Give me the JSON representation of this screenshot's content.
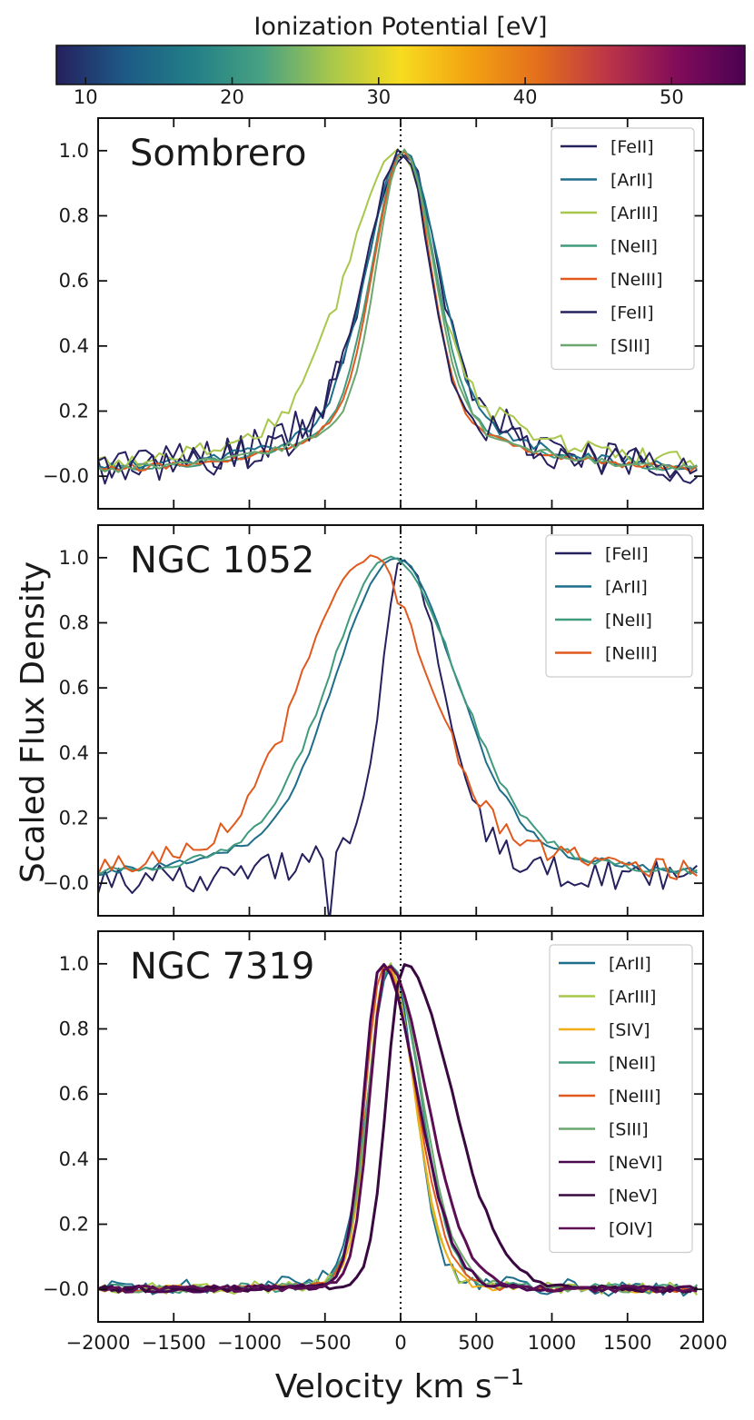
{
  "colorbar": {
    "label": "Ionization Potential [eV]",
    "min": 8,
    "max": 55,
    "ticks": [
      10,
      20,
      30,
      40,
      50
    ],
    "colormap": [
      "#25205e",
      "#1d5a85",
      "#227f87",
      "#49a281",
      "#a9c74b",
      "#f7dc1f",
      "#f3a211",
      "#e36f1c",
      "#bc3547",
      "#820c5a",
      "#4b0252"
    ]
  },
  "chart_data": [
    {
      "type": "line",
      "title": "Sombrero",
      "xlabel": "Velocity km s$^{-1}$",
      "ylabel": "Scaled Flux Density",
      "xlim": [
        -2000,
        2000
      ],
      "ylim": [
        -0.1,
        1.1
      ],
      "yticks": [
        "−0.0",
        "0.2",
        "0.4",
        "0.6",
        "0.8",
        "1.0"
      ],
      "x_tick_labels_shown": false,
      "series": [
        {
          "name": "[FeII]",
          "color": "#25205e",
          "center": 30,
          "width_left": 240,
          "width_right": 190,
          "wing": 0.28,
          "wing_width": 700,
          "noise": 0.06
        },
        {
          "name": "[ArII]",
          "color": "#1d6e8a",
          "center": 20,
          "width_left": 230,
          "width_right": 220,
          "wing": 0.22,
          "wing_width": 750,
          "noise": 0.015
        },
        {
          "name": "[ArIII]",
          "color": "#a9c74b",
          "center": -10,
          "width_left": 320,
          "width_right": 210,
          "wing": 0.3,
          "wing_width": 800,
          "noise": 0.03
        },
        {
          "name": "[NeII]",
          "color": "#3f9a7e",
          "center": 20,
          "width_left": 200,
          "width_right": 200,
          "wing": 0.2,
          "wing_width": 700,
          "noise": 0.01
        },
        {
          "name": "[NeIII]",
          "color": "#e1591c",
          "center": 20,
          "width_left": 190,
          "width_right": 170,
          "wing": 0.22,
          "wing_width": 650,
          "noise": 0.01
        },
        {
          "name": "[FeII]",
          "color": "#25205e",
          "center": 10,
          "width_left": 230,
          "width_right": 170,
          "wing": 0.25,
          "wing_width": 650,
          "noise": 0.05
        },
        {
          "name": "[SIII]",
          "color": "#6aa66d",
          "center": 20,
          "width_left": 170,
          "width_right": 190,
          "wing": 0.2,
          "wing_width": 700,
          "noise": 0.012
        }
      ]
    },
    {
      "type": "line",
      "title": "NGC 1052",
      "xlim": [
        -2000,
        2000
      ],
      "ylim": [
        -0.1,
        1.1
      ],
      "yticks": [
        "−0.0",
        "0.2",
        "0.4",
        "0.6",
        "0.8",
        "1.0"
      ],
      "x_tick_labels_shown": false,
      "series": [
        {
          "name": "[FeII]",
          "color": "#25205e",
          "center": 20,
          "width_left": 140,
          "width_right": 250,
          "wing": 0.12,
          "wing_width": 700,
          "noise": 0.05,
          "dip_at": -490,
          "dip_to": -0.12
        },
        {
          "name": "[ArII]",
          "color": "#1d6e8a",
          "center": -30,
          "width_left": 380,
          "width_right": 380,
          "wing": 0.25,
          "wing_width": 800,
          "noise": 0.012
        },
        {
          "name": "[NeII]",
          "color": "#3f9a7e",
          "center": -70,
          "width_left": 390,
          "width_right": 430,
          "wing": 0.25,
          "wing_width": 800,
          "noise": 0.012
        },
        {
          "name": "[NeIII]",
          "color": "#e1591c",
          "center": -200,
          "width_left": 420,
          "width_right": 360,
          "wing": 0.28,
          "wing_width": 850,
          "noise": 0.03,
          "dip_at": 0,
          "dip_to": 0.86
        }
      ]
    },
    {
      "type": "line",
      "title": "NGC 7319",
      "xlim": [
        -2000,
        2000
      ],
      "ylim": [
        -0.1,
        1.1
      ],
      "xticks": [
        "−2000",
        "−1500",
        "−1000",
        "−500",
        "0",
        "500",
        "1000",
        "1500",
        "2000"
      ],
      "yticks": [
        "−0.0",
        "0.2",
        "0.4",
        "0.6",
        "0.8",
        "1.0"
      ],
      "x_tick_labels_shown": true,
      "series": [
        {
          "name": "[ArII]",
          "color": "#1d6e8a",
          "center": -60,
          "width_left": 150,
          "width_right": 150,
          "wing": 0.08,
          "wing_width": 350,
          "noise": 0.025
        },
        {
          "name": "[ArIII]",
          "color": "#a9c74b",
          "center": -80,
          "width_left": 130,
          "width_right": 170,
          "wing": 0.05,
          "wing_width": 300,
          "noise": 0.02
        },
        {
          "name": "[SIV]",
          "color": "#f2ae15",
          "center": -90,
          "width_left": 120,
          "width_right": 180,
          "wing": 0.04,
          "wing_width": 300,
          "noise": 0.012
        },
        {
          "name": "[NeII]",
          "color": "#3f9a7e",
          "center": -70,
          "width_left": 140,
          "width_right": 200,
          "wing": 0.05,
          "wing_width": 300,
          "noise": 0.015
        },
        {
          "name": "[NeIII]",
          "color": "#e1591c",
          "center": -110,
          "width_left": 120,
          "width_right": 210,
          "wing": 0.04,
          "wing_width": 300,
          "noise": 0.01
        },
        {
          "name": "[SIII]",
          "color": "#6aa66d",
          "center": -80,
          "width_left": 130,
          "width_right": 220,
          "wing": 0.05,
          "wing_width": 300,
          "noise": 0.012
        },
        {
          "name": "[NeVI]",
          "color": "#4b0752",
          "center": -130,
          "width_left": 110,
          "width_right": 240,
          "wing": 0.03,
          "wing_width": 300,
          "noise": 0.01
        },
        {
          "name": "[NeV]",
          "color": "#3a0840",
          "center": 20,
          "width_left": 110,
          "width_right": 320,
          "wing": 0.03,
          "wing_width": 300,
          "noise": 0.01
        },
        {
          "name": "[OIV]",
          "color": "#5c0f55",
          "center": -90,
          "width_left": 110,
          "width_right": 260,
          "wing": 0.03,
          "wing_width": 300,
          "noise": 0.01
        }
      ]
    }
  ]
}
